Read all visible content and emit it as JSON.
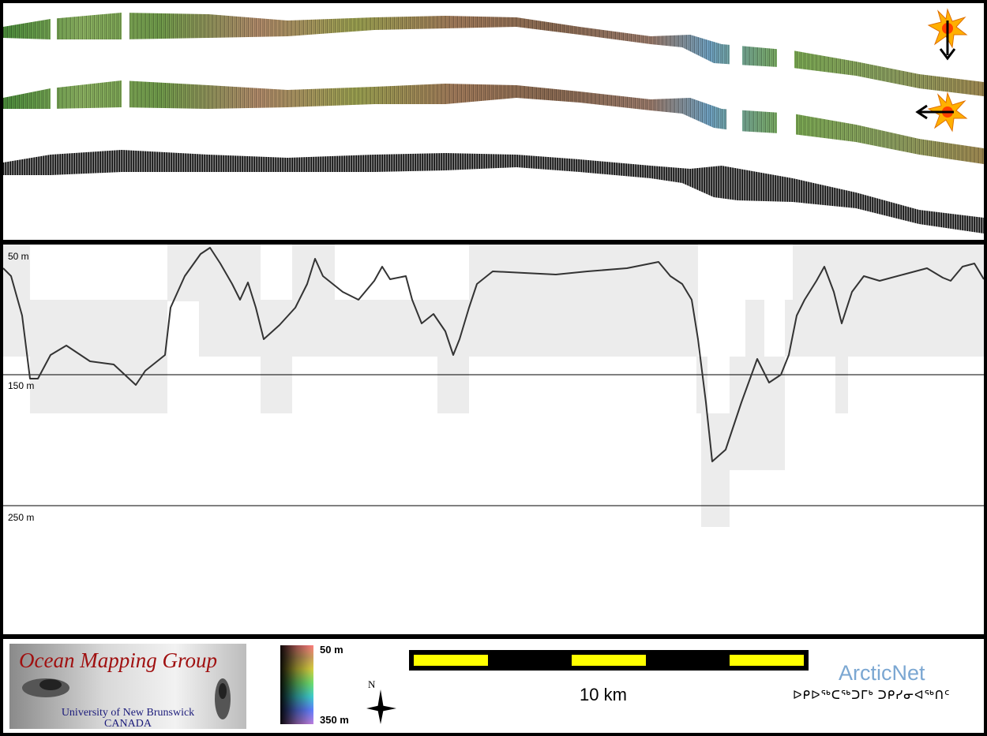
{
  "profile": {
    "depth_labels": [
      "50 m",
      "150 m",
      "250 m"
    ]
  },
  "legend": {
    "org_name": "Ocean Mapping Group",
    "university": "University of New Brunswick",
    "country": "CANADA",
    "colorbar_top": "50 m",
    "colorbar_bottom": "350 m",
    "north": "N",
    "scale": "10 km",
    "partner_name": "ArcticNet",
    "partner_inuktitut": "ᐅᑭᐅᖅᑕᖅᑐᒥᒃ ᑐᑭᓯᓂᐊᖅᑎᑦ"
  },
  "colors": {
    "scalebar_yellow": "#ffff00",
    "sun": "#ffb000",
    "org_red": "#a01010",
    "partner_blue": "#7ba7d2"
  },
  "icons": [
    "sun-illumination-top-icon",
    "sun-illumination-right-icon",
    "north-arrow-icon"
  ]
}
